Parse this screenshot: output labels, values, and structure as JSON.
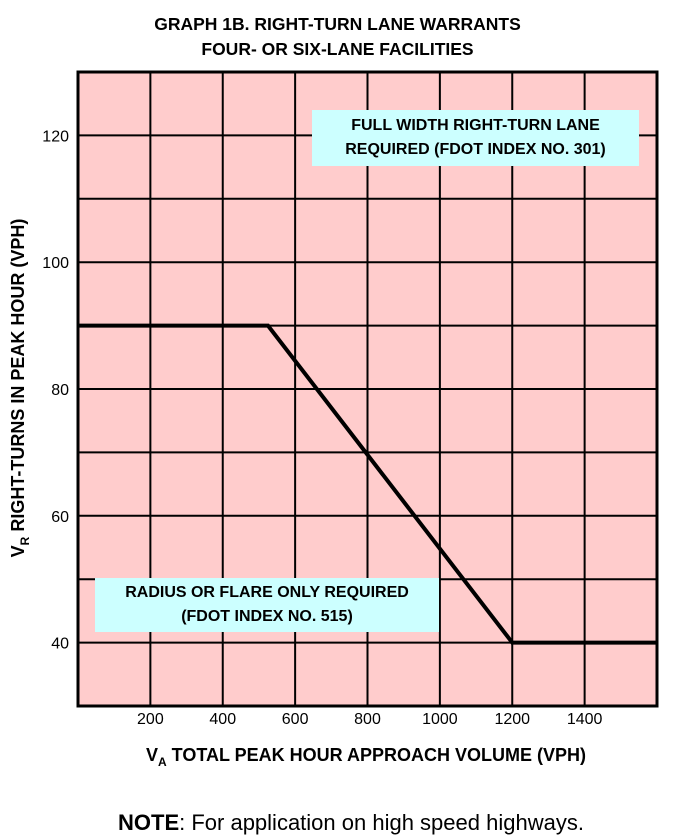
{
  "title": {
    "line1": "GRAPH 1B.  RIGHT-TURN LANE WARRANTS",
    "line2": "FOUR- OR SIX-LANE FACILITIES"
  },
  "note": {
    "label": "NOTE",
    "text": ":  For application on high speed highways."
  },
  "colors": {
    "plot_background": "#ffcccc",
    "annotation_background": "#ccffff",
    "grid": "#000000",
    "line": "#000000"
  },
  "chart_data": {
    "type": "line",
    "xlabel": {
      "prefix": "V",
      "subscript": "A",
      "text": " TOTAL PEAK HOUR APPROACH VOLUME (VPH)"
    },
    "ylabel": {
      "prefix": "V",
      "subscript": "R",
      "text": " RIGHT-TURNS IN PEAK HOUR (VPH)"
    },
    "xlim": [
      0,
      1600
    ],
    "ylim": [
      30,
      130
    ],
    "x_gridlines": [
      200,
      400,
      600,
      800,
      1000,
      1200,
      1400
    ],
    "y_gridlines": [
      40,
      50,
      60,
      70,
      80,
      90,
      100,
      110,
      120
    ],
    "x_ticks": [
      {
        "value": 200,
        "label": "200"
      },
      {
        "value": 400,
        "label": "400"
      },
      {
        "value": 600,
        "label": "600"
      },
      {
        "value": 800,
        "label": "800"
      },
      {
        "value": 1000,
        "label": "1000"
      },
      {
        "value": 1200,
        "label": "1200"
      },
      {
        "value": 1400,
        "label": "1400"
      }
    ],
    "y_ticks": [
      {
        "value": 40,
        "label": "40"
      },
      {
        "value": 60,
        "label": "60"
      },
      {
        "value": 80,
        "label": "80"
      },
      {
        "value": 100,
        "label": "100"
      },
      {
        "value": 120,
        "label": "120"
      }
    ],
    "grid": true,
    "series": [
      {
        "x": [
          0,
          525,
          1200,
          1600
        ],
        "y": [
          90,
          90,
          40,
          40
        ]
      }
    ],
    "annotations": [
      {
        "id": "full-width",
        "lines": [
          "FULL WIDTH RIGHT-TURN LANE",
          "REQUIRED (FDOT INDEX NO. 301)"
        ]
      },
      {
        "id": "radius",
        "lines": [
          "RADIUS OR FLARE ONLY REQUIRED",
          "(FDOT INDEX NO. 515)"
        ]
      }
    ]
  }
}
